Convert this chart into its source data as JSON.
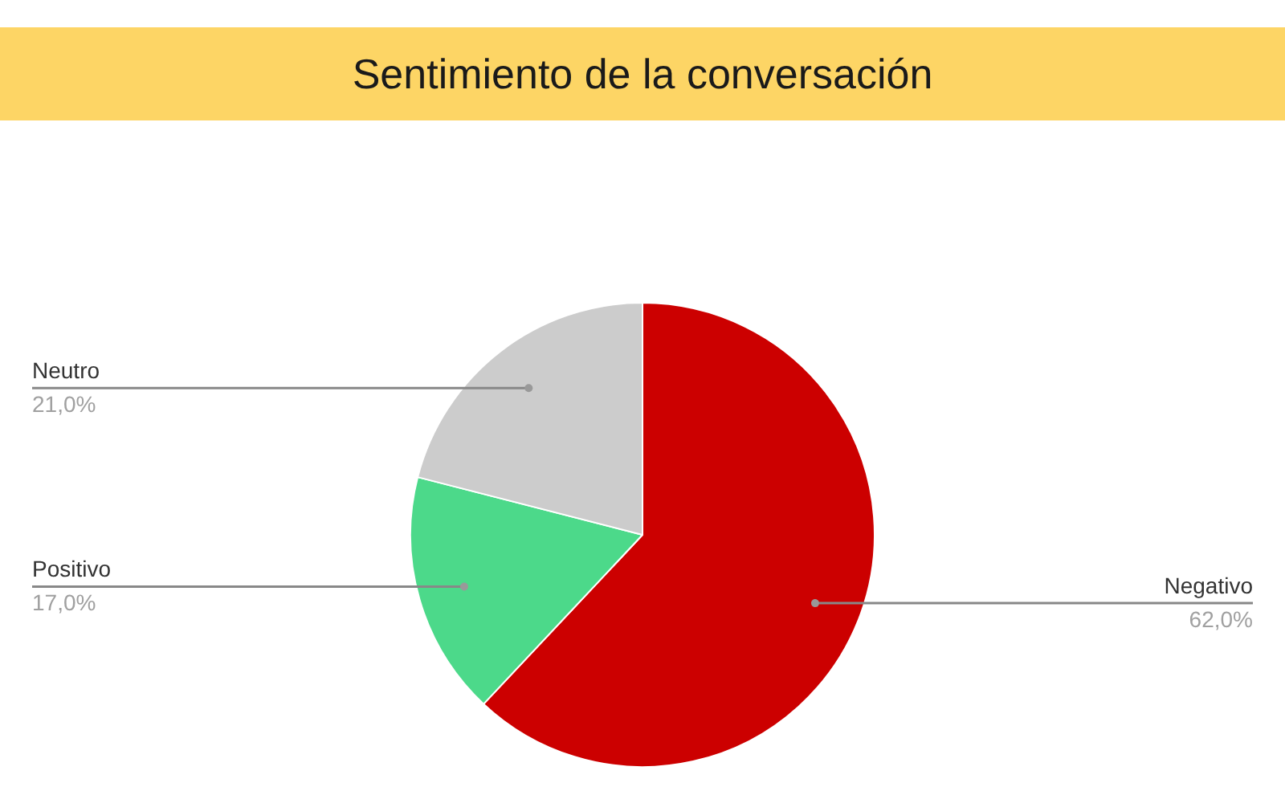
{
  "chart_data": {
    "type": "pie",
    "title": "Sentimiento de la conversación",
    "categories": [
      "Negativo",
      "Positivo",
      "Neutro"
    ],
    "values": [
      62,
      17,
      21
    ],
    "colors": [
      "#cc0000",
      "#4cd98a",
      "#cccccc"
    ],
    "value_labels": [
      "62,0%",
      "17,0%",
      "21,0%"
    ]
  }
}
